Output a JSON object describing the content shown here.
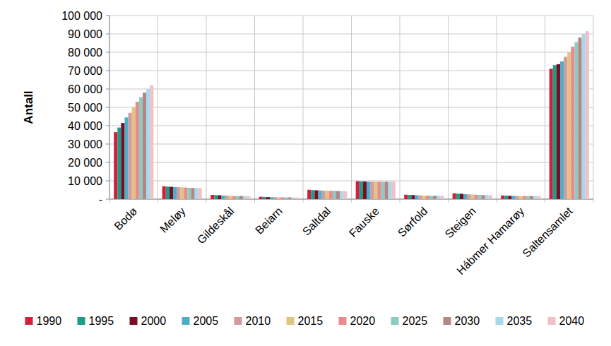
{
  "chart_data": {
    "type": "bar",
    "y_label": "Antall",
    "categories": [
      "Bodø",
      "Meløy",
      "Gildeskål",
      "Beiarn",
      "Saltdal",
      "Fauske",
      "Sørfold",
      "Steigen",
      "Hábmer Hamarøy",
      "Saltensamlet"
    ],
    "series": [
      {
        "name": "1990",
        "color": "#d2203c",
        "values": [
          36500,
          7000,
          2300,
          1300,
          5100,
          9800,
          2400,
          3200,
          2000,
          71000
        ]
      },
      {
        "name": "1995",
        "color": "#1a9e86",
        "values": [
          39000,
          6800,
          2200,
          1200,
          4900,
          9700,
          2300,
          3000,
          1900,
          73000
        ]
      },
      {
        "name": "2000",
        "color": "#7a0d25",
        "values": [
          41500,
          6700,
          2100,
          1100,
          4800,
          9600,
          2200,
          2900,
          1800,
          73500
        ]
      },
      {
        "name": "2005",
        "color": "#4bafc8",
        "values": [
          44500,
          6600,
          2000,
          1050,
          4700,
          9500,
          2100,
          2700,
          1800,
          75000
        ]
      },
      {
        "name": "2010",
        "color": "#d39aa1",
        "values": [
          47000,
          6500,
          1900,
          1050,
          4600,
          9500,
          2000,
          2600,
          1700,
          77500
        ]
      },
      {
        "name": "2015",
        "color": "#e2c481",
        "values": [
          50000,
          6400,
          1800,
          1000,
          4600,
          9500,
          1900,
          2500,
          1700,
          80000
        ]
      },
      {
        "name": "2020",
        "color": "#ea8a8e",
        "values": [
          53000,
          6300,
          1700,
          1000,
          4500,
          9500,
          1900,
          2400,
          1700,
          83000
        ]
      },
      {
        "name": "2025",
        "color": "#8ccbbd",
        "values": [
          55500,
          6200,
          1700,
          950,
          4500,
          9500,
          1800,
          2300,
          1700,
          85500
        ]
      },
      {
        "name": "2030",
        "color": "#b48487",
        "values": [
          58000,
          6100,
          1700,
          950,
          4400,
          9500,
          1800,
          2200,
          1700,
          88000
        ]
      },
      {
        "name": "2035",
        "color": "#a6daea",
        "values": [
          60000,
          6000,
          1700,
          900,
          4400,
          9500,
          1800,
          2200,
          1700,
          90000
        ]
      },
      {
        "name": "2040",
        "color": "#f4c0c8",
        "values": [
          62000,
          6000,
          1600,
          900,
          4300,
          9500,
          1800,
          2100,
          1700,
          91500
        ]
      }
    ],
    "ylim": [
      0,
      100000
    ],
    "yticks": [
      {
        "value": 0,
        "label": "-"
      },
      {
        "value": 10000,
        "label": "10 000"
      },
      {
        "value": 20000,
        "label": "20 000"
      },
      {
        "value": 30000,
        "label": "30 000"
      },
      {
        "value": 40000,
        "label": "40 000"
      },
      {
        "value": 50000,
        "label": "50 000"
      },
      {
        "value": 60000,
        "label": "60 000"
      },
      {
        "value": 70000,
        "label": "70 000"
      },
      {
        "value": 80000,
        "label": "80 000"
      },
      {
        "value": 90000,
        "label": "90 000"
      },
      {
        "value": 100000,
        "label": "100 000"
      }
    ],
    "grid": true,
    "legend": "bottom"
  }
}
